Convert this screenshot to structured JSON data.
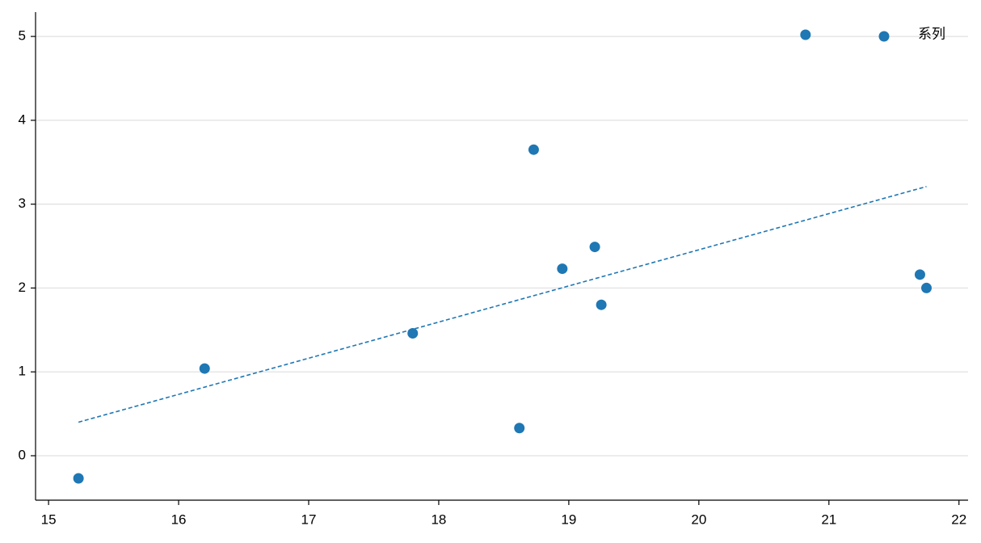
{
  "chart_data": {
    "type": "scatter",
    "series": [
      {
        "name": "系列",
        "color": "#1f77b4",
        "x": [
          15.23,
          16.2,
          17.8,
          18.62,
          18.73,
          18.95,
          19.2,
          19.25,
          20.82,
          21.7,
          21.75
        ],
        "y": [
          -0.27,
          1.04,
          1.46,
          0.33,
          3.65,
          2.23,
          2.49,
          1.8,
          5.02,
          2.16,
          2.0
        ]
      }
    ],
    "trendline": {
      "x": [
        15.23,
        21.75
      ],
      "y": [
        0.4,
        3.21
      ],
      "color": "#1f77b4",
      "style": "dashed"
    },
    "xlim": [
      14.9,
      22.07
    ],
    "ylim": [
      -0.53,
      5.29
    ],
    "xticks": [
      15,
      16,
      17,
      18,
      19,
      20,
      21,
      22
    ],
    "yticks": [
      0,
      1,
      2,
      3,
      4,
      5
    ],
    "grid": "y",
    "legend": "upper right"
  }
}
